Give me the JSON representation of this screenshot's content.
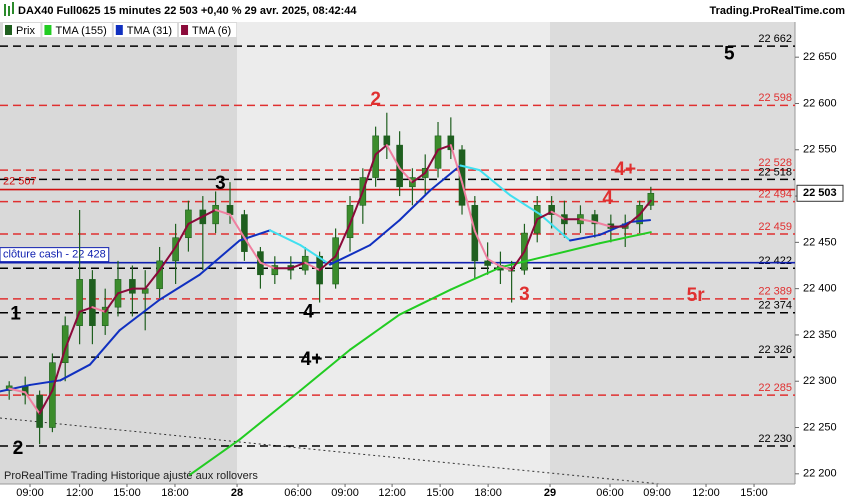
{
  "chart_data": {
    "type": "candlestick",
    "title": "DAX40 Full0625 15 minutes 22 503 +0,40 % 29 avr. 2025, 08:42:44",
    "watermark": "Trading.ProRealTime.com",
    "footer": "ProRealTime Trading  Historique ajusté aux rollovers",
    "xlim": [
      -1.875,
      47.81
    ],
    "ylim": [
      22189,
      22688
    ],
    "xticks": [
      {
        "value": 0,
        "label": "09:00"
      },
      {
        "value": 3.1,
        "label": "12:00"
      },
      {
        "value": 6.06,
        "label": "15:00"
      },
      {
        "value": 9.06,
        "label": "18:00"
      },
      {
        "value": 12.94,
        "label": "28"
      },
      {
        "value": 16.75,
        "label": "06:00"
      },
      {
        "value": 19.69,
        "label": "09:00"
      },
      {
        "value": 22.63,
        "label": "12:00"
      },
      {
        "value": 25.63,
        "label": "15:00"
      },
      {
        "value": 28.63,
        "label": "18:00"
      },
      {
        "value": 32.5,
        "label": "29"
      },
      {
        "value": 36.25,
        "label": "06:00"
      },
      {
        "value": 39.19,
        "label": "09:00"
      },
      {
        "value": 42.25,
        "label": "12:00"
      },
      {
        "value": 45.25,
        "label": "15:00"
      }
    ],
    "yticks": [
      {
        "value": 22200,
        "label": "22 200"
      },
      {
        "value": 22250,
        "label": "22 250"
      },
      {
        "value": 22300,
        "label": "22 300"
      },
      {
        "value": 22350,
        "label": "22 350"
      },
      {
        "value": 22400,
        "label": "22 400"
      },
      {
        "value": 22450,
        "label": "22 450"
      },
      {
        "value": 22500,
        "label": "22 500"
      },
      {
        "value": 22550,
        "label": "22 550"
      },
      {
        "value": 22600,
        "label": "22 600"
      },
      {
        "value": 22650,
        "label": "22 650"
      }
    ],
    "series": [
      {
        "name": "Prix",
        "color": "#1f5f1f",
        "x": [
          -1.3,
          -0.3,
          0.6,
          1.4,
          2.2,
          3.1,
          3.9,
          4.7,
          5.5,
          6.4,
          7.2,
          8.1,
          9.1,
          9.9,
          10.8,
          11.6,
          12.5,
          13.4,
          14.4,
          15.3,
          16.3,
          17.2,
          18.1,
          19.1,
          20.0,
          20.8,
          21.6,
          22.3,
          23.1,
          23.9,
          24.7,
          25.5,
          26.3,
          27.0,
          27.8,
          28.6,
          29.4,
          30.1,
          30.9,
          31.7,
          32.6,
          33.4,
          34.4,
          35.3,
          36.3,
          37.2,
          38.1,
          38.8
        ],
        "open": [
          22290,
          22295,
          22285,
          22250,
          22320,
          22360,
          22410,
          22360,
          22380,
          22410,
          22395,
          22400,
          22430,
          22455,
          22485,
          22470,
          22490,
          22480,
          22440,
          22415,
          22425,
          22420,
          22435,
          22405,
          22455,
          22490,
          22520,
          22565,
          22555,
          22510,
          22520,
          22530,
          22565,
          22550,
          22490,
          22430,
          22425,
          22420,
          22420,
          22460,
          22490,
          22480,
          22470,
          22480,
          22470,
          22465,
          22470,
          22490
        ],
        "high": [
          22300,
          22305,
          22290,
          22330,
          22370,
          22485,
          22420,
          22400,
          22430,
          22425,
          22420,
          22445,
          22470,
          22495,
          22500,
          22505,
          22515,
          22485,
          22445,
          22435,
          22435,
          22445,
          22440,
          22465,
          22500,
          22530,
          22575,
          22590,
          22570,
          22530,
          22545,
          22580,
          22585,
          22555,
          22500,
          22450,
          22440,
          22430,
          22470,
          22500,
          22500,
          22495,
          22490,
          22485,
          22480,
          22480,
          22495,
          22510
        ],
        "low": [
          22280,
          22275,
          22232,
          22245,
          22300,
          22340,
          22340,
          22350,
          22370,
          22370,
          22355,
          22390,
          22405,
          22440,
          22420,
          22460,
          22470,
          22430,
          22400,
          22405,
          22410,
          22415,
          22385,
          22400,
          22440,
          22470,
          22510,
          22540,
          22500,
          22490,
          22500,
          22520,
          22540,
          22480,
          22410,
          22415,
          22405,
          22385,
          22415,
          22450,
          22465,
          22455,
          22460,
          22455,
          22450,
          22445,
          22460,
          22485
        ],
        "close": [
          22295,
          22285,
          22250,
          22320,
          22360,
          22410,
          22360,
          22380,
          22410,
          22395,
          22400,
          22430,
          22455,
          22485,
          22470,
          22490,
          22480,
          22440,
          22415,
          22425,
          22420,
          22435,
          22405,
          22455,
          22490,
          22520,
          22565,
          22555,
          22510,
          22520,
          22530,
          22565,
          22550,
          22490,
          22430,
          22425,
          22420,
          22420,
          22460,
          22490,
          22480,
          22470,
          22480,
          22470,
          22465,
          22470,
          22490,
          22503
        ]
      },
      {
        "name": "TMA (155)",
        "color": "#22cc22",
        "x": [
          10,
          13.1,
          16.9,
          20,
          23.1,
          26.3,
          29.4,
          32.5,
          35.6,
          38.8
        ],
        "values": [
          22199,
          22237,
          22290,
          22334,
          22372,
          22399,
          22423,
          22436,
          22449,
          22461
        ]
      },
      {
        "name": "TMA (31)",
        "color": "#1030c0",
        "color2": "#40e0f0",
        "x": [
          -1.875,
          0,
          1.9,
          3.75,
          5.6,
          8.1,
          10.6,
          13.1,
          15,
          16.9,
          18.75,
          21.25,
          23.1,
          25,
          26.9,
          28.1,
          30,
          31.9,
          33.75,
          35.6,
          37.5,
          38.75
        ],
        "values": [
          22289,
          22296,
          22301,
          22318,
          22355,
          22388,
          22415,
          22452,
          22463,
          22447,
          22426,
          22447,
          22474,
          22506,
          22533,
          22528,
          22501,
          22480,
          22452,
          22458,
          22472,
          22474
        ]
      },
      {
        "name": "TMA (6)",
        "color": "#8b0a3a",
        "color2": "#f080a0",
        "x": [
          -1.3,
          -0.3,
          0.6,
          1.4,
          2.2,
          3.1,
          3.9,
          4.7,
          5.5,
          6.4,
          7.2,
          8.1,
          9.1,
          9.9,
          10.8,
          11.6,
          12.5,
          13.4,
          14.4,
          15.3,
          16.3,
          17.2,
          18.1,
          19.1,
          20.0,
          20.8,
          21.6,
          22.3,
          23.1,
          23.9,
          24.7,
          25.5,
          26.3,
          27.0,
          27.8,
          28.6,
          29.4,
          30.1,
          30.9,
          31.7,
          32.6,
          33.4,
          34.4,
          35.3,
          36.3,
          37.2,
          38.1,
          38.8
        ],
        "values": [
          22292,
          22288,
          22265,
          22290,
          22335,
          22375,
          22380,
          22375,
          22395,
          22400,
          22400,
          22420,
          22445,
          22470,
          22478,
          22485,
          22480,
          22455,
          22428,
          22422,
          22422,
          22428,
          22420,
          22435,
          22470,
          22505,
          22545,
          22555,
          22530,
          22515,
          22525,
          22550,
          22555,
          22515,
          22462,
          22432,
          22424,
          22420,
          22440,
          22475,
          22483,
          22475,
          22475,
          22472,
          22467,
          22467,
          22480,
          22495
        ]
      }
    ],
    "levels": [
      {
        "value": 22662,
        "label": "22 662",
        "color": "#000000",
        "style": "dashed"
      },
      {
        "value": 22598,
        "label": "22 598",
        "color": "#e03030",
        "style": "dashed"
      },
      {
        "value": 22528,
        "label": "22 528",
        "color": "#e03030",
        "style": "dashed"
      },
      {
        "value": 22518,
        "label": "22 518",
        "color": "#000000",
        "style": "dashed"
      },
      {
        "value": 22494,
        "label": "22 494",
        "color": "#e03030",
        "style": "dashed"
      },
      {
        "value": 22459,
        "label": "22 459",
        "color": "#e03030",
        "style": "dashed"
      },
      {
        "value": 22422,
        "label": "22 422",
        "color": "#000000",
        "style": "dashed"
      },
      {
        "value": 22389,
        "label": "22 389",
        "color": "#e03030",
        "style": "dashed"
      },
      {
        "value": 22374,
        "label": "22 374",
        "color": "#000000",
        "style": "dashed"
      },
      {
        "value": 22326,
        "label": "22 326",
        "color": "#000000",
        "style": "dashed"
      },
      {
        "value": 22285,
        "label": "22 285",
        "color": "#e03030",
        "style": "dashed"
      },
      {
        "value": 22230,
        "label": "22 230",
        "color": "#000000",
        "style": "dashed"
      },
      {
        "value": 22507,
        "label": "22 507",
        "color": "#d01010",
        "style": "solid",
        "label_side": "left"
      },
      {
        "value": 22428,
        "label": "clôture cash -  22 428",
        "color": "#1020b0",
        "style": "solid",
        "label_side": "left"
      }
    ],
    "last": {
      "value": 22503,
      "label": "22 503"
    },
    "annotations": [
      {
        "text": "5",
        "x": 43.7,
        "y": 22653,
        "color": "#000000"
      },
      {
        "text": "2",
        "x": 21.6,
        "y": 22604,
        "color": "#e03030"
      },
      {
        "text": "4+",
        "x": 37.2,
        "y": 22528,
        "color": "#e03030"
      },
      {
        "text": "4",
        "x": 36.1,
        "y": 22497,
        "color": "#e03030"
      },
      {
        "text": "3",
        "x": 30.9,
        "y": 22393,
        "color": "#e03030"
      },
      {
        "text": "5r",
        "x": 41.6,
        "y": 22392,
        "color": "#e03030"
      },
      {
        "text": "3",
        "x": 11.9,
        "y": 22513,
        "color": "#000000"
      },
      {
        "text": "1",
        "x": -0.9,
        "y": 22372,
        "color": "#000000"
      },
      {
        "text": "4",
        "x": 17.4,
        "y": 22374,
        "color": "#000000"
      },
      {
        "text": "4+",
        "x": 17.6,
        "y": 22323,
        "color": "#000000"
      },
      {
        "text": "2",
        "x": -0.75,
        "y": 22227,
        "color": "#000000"
      }
    ]
  }
}
